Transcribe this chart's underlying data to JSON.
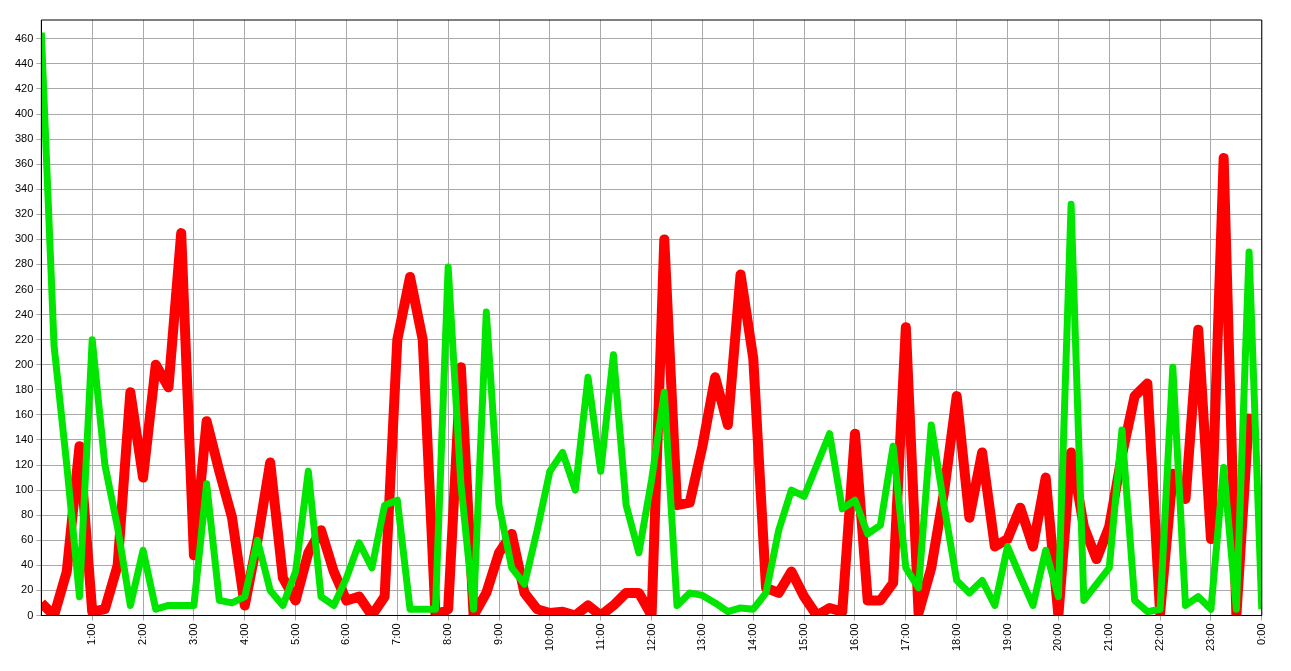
{
  "chart_data": {
    "type": "line",
    "x": [
      0,
      0.25,
      0.5,
      0.75,
      1,
      1.25,
      1.5,
      1.75,
      2,
      2.25,
      2.5,
      2.75,
      3,
      3.25,
      3.5,
      3.75,
      4,
      4.25,
      4.5,
      4.75,
      5,
      5.25,
      5.5,
      5.75,
      6,
      6.25,
      6.5,
      6.75,
      7,
      7.25,
      7.5,
      7.75,
      8,
      8.25,
      8.5,
      8.75,
      9,
      9.25,
      9.5,
      9.75,
      10,
      10.25,
      10.5,
      10.75,
      11,
      11.25,
      11.5,
      11.75,
      12,
      12.25,
      12.5,
      12.75,
      13,
      13.25,
      13.5,
      13.75,
      14,
      14.25,
      14.5,
      14.75,
      15,
      15.25,
      15.5,
      15.75,
      16,
      16.25,
      16.5,
      16.75,
      17,
      17.25,
      17.5,
      17.75,
      18,
      18.25,
      18.5,
      18.75,
      19,
      19.25,
      19.5,
      19.75,
      20,
      20.25,
      20.5,
      20.75,
      21,
      21.25,
      21.5,
      21.75,
      22,
      22.25,
      22.5,
      22.75,
      23,
      23.25,
      23.5,
      23.75,
      24
    ],
    "series": [
      {
        "color": "#00e600",
        "values": [
          465,
          215,
          120,
          15,
          220,
          120,
          70,
          8,
          52,
          5,
          8,
          8,
          8,
          105,
          12,
          10,
          15,
          60,
          20,
          8,
          35,
          115,
          15,
          8,
          30,
          58,
          38,
          88,
          92,
          5,
          5,
          5,
          278,
          105,
          5,
          242,
          88,
          38,
          25,
          68,
          115,
          130,
          100,
          190,
          115,
          208,
          88,
          50,
          108,
          178,
          8,
          18,
          16,
          10,
          3,
          6,
          5,
          18,
          68,
          100,
          95,
          120,
          145,
          85,
          92,
          65,
          72,
          135,
          38,
          22,
          152,
          88,
          28,
          18,
          28,
          8,
          55,
          31,
          8,
          52,
          15,
          328,
          12,
          25,
          38,
          148,
          12,
          3,
          5,
          198,
          8,
          15,
          5,
          118,
          5,
          290,
          5
        ]
      },
      {
        "color": "#ff0000",
        "values": [
          10,
          0,
          35,
          135,
          3,
          5,
          40,
          178,
          110,
          200,
          182,
          305,
          48,
          155,
          115,
          78,
          8,
          60,
          122,
          30,
          12,
          50,
          68,
          35,
          12,
          15,
          0,
          15,
          220,
          270,
          220,
          0,
          5,
          198,
          0,
          18,
          50,
          65,
          18,
          5,
          2,
          3,
          0,
          8,
          0,
          8,
          18,
          18,
          0,
          300,
          88,
          90,
          135,
          190,
          152,
          272,
          205,
          22,
          18,
          35,
          15,
          0,
          6,
          3,
          145,
          12,
          12,
          26,
          230,
          2,
          38,
          98,
          175,
          78,
          130,
          55,
          61,
          86,
          55,
          110,
          0,
          130,
          71,
          45,
          71,
          128,
          175,
          185,
          2,
          113,
          93,
          228,
          61,
          365,
          0,
          161,
          null
        ]
      }
    ],
    "xlim": [
      0,
      24
    ],
    "xticks": [
      {
        "value": 1,
        "label": "1:00"
      },
      {
        "value": 2,
        "label": "2:00"
      },
      {
        "value": 3,
        "label": "3:00"
      },
      {
        "value": 4,
        "label": "4:00"
      },
      {
        "value": 5,
        "label": "5:00"
      },
      {
        "value": 6,
        "label": "6:00"
      },
      {
        "value": 7,
        "label": "7:00"
      },
      {
        "value": 8,
        "label": "8:00"
      },
      {
        "value": 9,
        "label": "9:00"
      },
      {
        "value": 10,
        "label": "10:00"
      },
      {
        "value": 11,
        "label": "11:00"
      },
      {
        "value": 12,
        "label": "12:00"
      },
      {
        "value": 13,
        "label": "13:00"
      },
      {
        "value": 14,
        "label": "14:00"
      },
      {
        "value": 15,
        "label": "15:00"
      },
      {
        "value": 16,
        "label": "16:00"
      },
      {
        "value": 17,
        "label": "17:00"
      },
      {
        "value": 18,
        "label": "18:00"
      },
      {
        "value": 19,
        "label": "19:00"
      },
      {
        "value": 20,
        "label": "20:00"
      },
      {
        "value": 21,
        "label": "21:00"
      },
      {
        "value": 22,
        "label": "22:00"
      },
      {
        "value": 23,
        "label": "23:00"
      },
      {
        "value": 24,
        "label": "0:00"
      }
    ],
    "ylim": [
      0,
      475
    ],
    "yticks": [
      0,
      20,
      40,
      60,
      80,
      100,
      120,
      140,
      160,
      180,
      200,
      220,
      240,
      260,
      280,
      300,
      320,
      340,
      360,
      380,
      400,
      420,
      440,
      460
    ],
    "grid": true,
    "legend": false,
    "line_style": "solid"
  }
}
